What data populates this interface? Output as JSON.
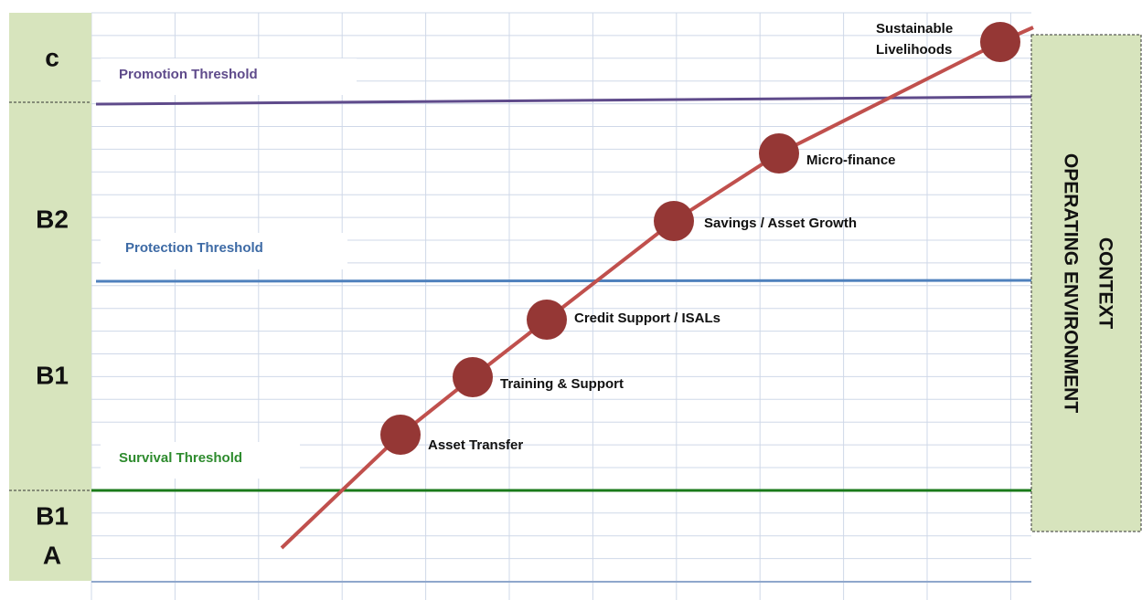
{
  "bands": [
    "c",
    "B2",
    "B1",
    "B1",
    "A"
  ],
  "thresholds": [
    {
      "label": "Promotion Threshold"
    },
    {
      "label": "Protection Threshold"
    },
    {
      "label": "Survival Threshold"
    }
  ],
  "milestones": [
    {
      "label": "Asset Transfer"
    },
    {
      "label": "Training & Support"
    },
    {
      "label": "Credit Support / ISALs"
    },
    {
      "label": "Savings / Asset Growth"
    },
    {
      "label": "Micro-finance"
    },
    {
      "label": [
        "Sustainable",
        "Livelihoods"
      ]
    }
  ],
  "context": [
    "CONTEXT",
    "OPERATING ENVIRONMENT"
  ]
}
